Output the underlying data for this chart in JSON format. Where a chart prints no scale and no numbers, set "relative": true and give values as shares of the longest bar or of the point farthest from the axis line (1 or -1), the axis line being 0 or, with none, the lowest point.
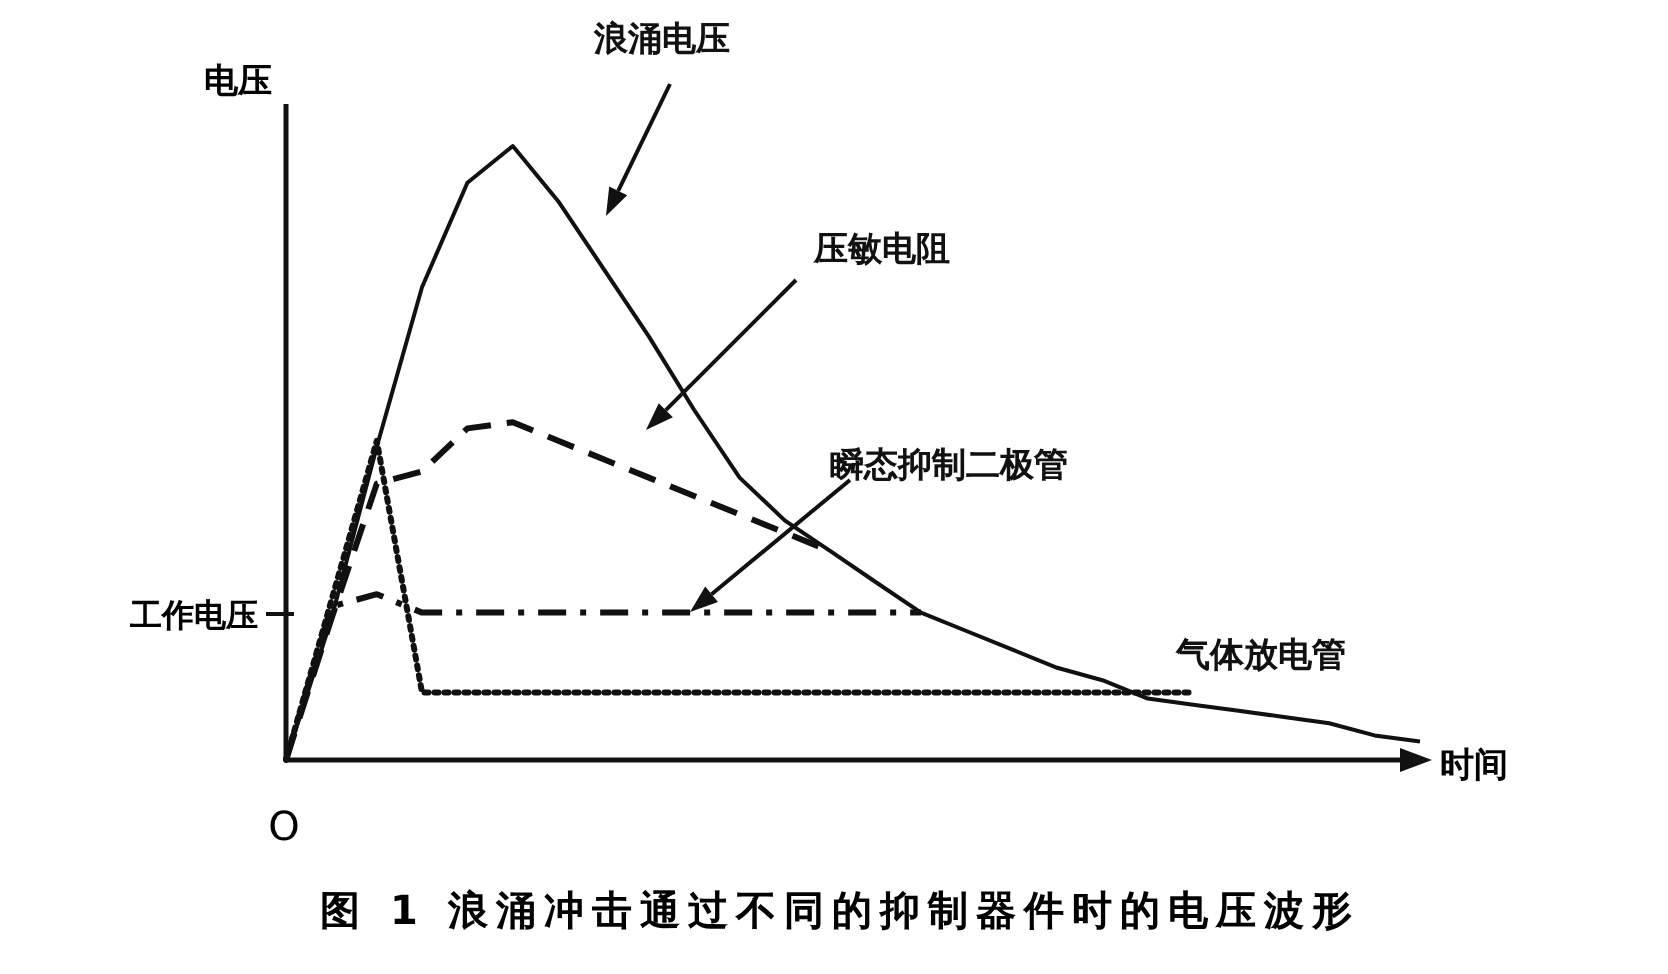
{
  "chart_data": {
    "type": "line",
    "relative": true,
    "title": "图 1 浪涌冲击通过不同的抑制器件时的电压波形",
    "xlabel": "时间",
    "ylabel": "电压",
    "annotations": [
      "O",
      "工作电压"
    ],
    "categories": [
      null,
      null,
      null,
      null,
      null,
      null,
      null,
      null,
      null,
      null,
      null,
      null,
      null,
      null,
      null,
      null,
      null,
      null,
      null,
      null,
      null,
      null,
      null,
      null,
      null,
      null
    ],
    "series": [
      {
        "name": "浪涌电压",
        "color": "#111111",
        "line_style": "solid",
        "values": [
          0,
          0.23,
          0.51,
          0.77,
          0.94,
          1,
          0.91,
          0.8,
          0.69,
          0.57,
          0.46,
          0.39,
          0.34,
          0.29,
          0.24,
          0.21,
          0.18,
          0.15,
          0.13,
          0.1,
          0.09,
          0.08,
          0.07,
          0.06,
          0.04,
          0.03
        ]
      },
      {
        "name": "压敏电阻",
        "color": "#111111",
        "line_style": "dashed",
        "values": [
          0,
          0.23,
          0.45,
          0.47,
          0.54,
          0.55,
          0.52,
          0.49,
          0.46,
          0.43,
          0.4,
          0.37,
          0.34,
          null,
          null,
          null,
          null,
          null,
          null,
          null,
          null,
          null,
          null,
          null,
          null,
          null
        ]
      },
      {
        "name": "瞬态抑制二极管",
        "color": "#111111",
        "line_style": "dashdot",
        "values": [
          0,
          0.25,
          0.27,
          0.24,
          0.24,
          0.24,
          0.24,
          0.24,
          0.24,
          0.24,
          0.24,
          0.24,
          0.24,
          0.24,
          0.24,
          null,
          null,
          null,
          null,
          null,
          null,
          null,
          null,
          null,
          null,
          null
        ]
      },
      {
        "name": "气体放电管",
        "color": "#111111",
        "line_style": "dotted",
        "values": [
          0,
          0.26,
          0.52,
          0.11,
          0.11,
          0.11,
          0.11,
          0.11,
          0.11,
          0.11,
          0.11,
          0.11,
          0.11,
          0.11,
          0.11,
          0.11,
          0.11,
          0.11,
          0.11,
          0.11,
          0.11,
          null,
          null,
          null,
          null,
          null
        ]
      }
    ]
  }
}
